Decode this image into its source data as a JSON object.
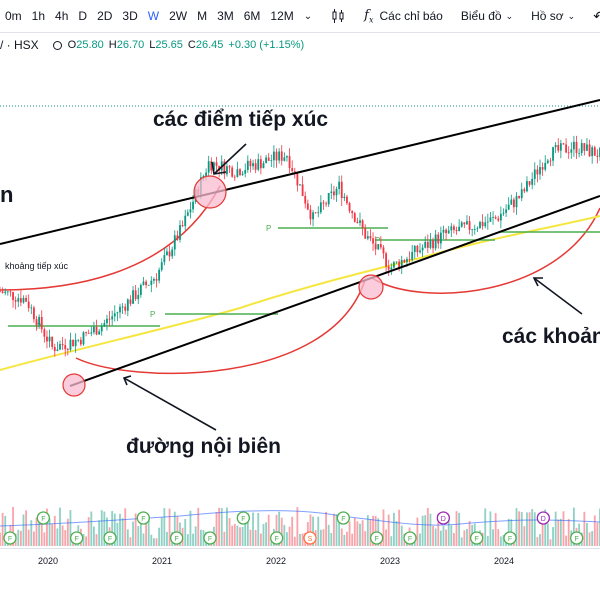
{
  "toolbar": {
    "intervals": [
      "0m",
      "1h",
      "4h",
      "D",
      "2D",
      "3D",
      "W",
      "2W",
      "M",
      "3M",
      "6M",
      "12M"
    ],
    "active_interval": "W",
    "indicators_label": "Các chỉ báo",
    "chart_type_label": "Biểu đồ",
    "profile_label": "Hồ sơ"
  },
  "symbol": {
    "name": "/ · HSX",
    "o_label": "O",
    "o_value": "25.80",
    "h_label": "H",
    "h_value": "26.70",
    "l_label": "L",
    "l_value": "25.65",
    "c_label": "C",
    "c_value": "26.45",
    "change": "+0.30 (+1.15%)"
  },
  "annotations": {
    "contact_points": "các điểm tiếp xúc",
    "left_cut": "n",
    "contact_gap": "khoảng tiếp xúc",
    "inner_line": "đường nội biên",
    "gaps_right": "các khoản"
  },
  "axis": {
    "years": [
      "2020",
      "2021",
      "2022",
      "2023",
      "2024"
    ]
  },
  "colors": {
    "up": "#089981",
    "down": "#f23645",
    "ma_yellow": "#f5e642",
    "pivot_green": "#4caf50",
    "arc_red": "#e53935",
    "circle_fill": "#f8bbd0",
    "accent": "#2962ff"
  },
  "chart_data": {
    "type": "candlestick",
    "interval": "W",
    "x": [
      "2019-11",
      "2020-01",
      "2020-03",
      "2020-06",
      "2020-09",
      "2020-12",
      "2021-01",
      "2021-03",
      "2021-06",
      "2021-09",
      "2021-12",
      "2022-02",
      "2022-04",
      "2022-06",
      "2022-09",
      "2022-11",
      "2023-01",
      "2023-04",
      "2023-07",
      "2023-10",
      "2024-01",
      "2024-03",
      "2024-06",
      "2024-09"
    ],
    "close": [
      18.0,
      17.5,
      14.5,
      15.0,
      16.0,
      17.5,
      19.0,
      22.0,
      26.0,
      25.5,
      26.0,
      26.5,
      22.5,
      24.5,
      21.5,
      19.5,
      20.5,
      21.5,
      22.0,
      22.5,
      24.0,
      26.5,
      27.0,
      26.5
    ],
    "volume_markers": [
      "F",
      "F",
      "F",
      "F",
      "F",
      "F",
      "F",
      "F",
      "F",
      "S",
      "F",
      "F",
      "F",
      "D",
      "F",
      "F",
      "D",
      "F"
    ]
  }
}
